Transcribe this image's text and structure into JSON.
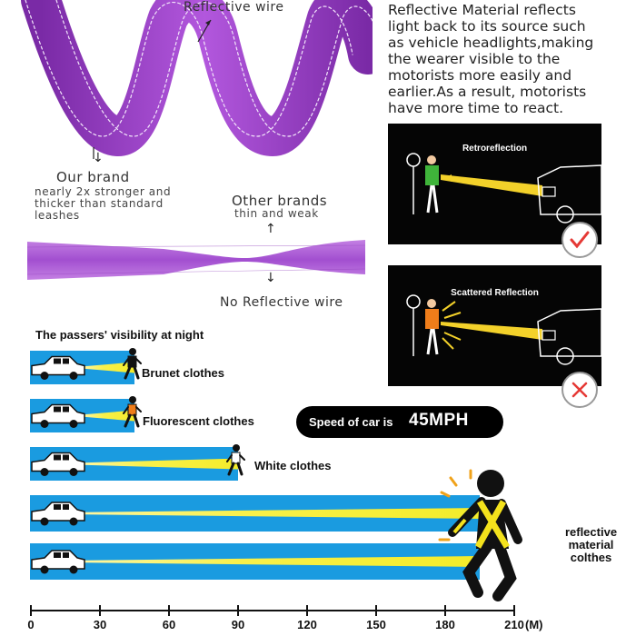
{
  "leash": {
    "reflective_wire_label": "Reflective wire",
    "our_brand_title": "Our brand",
    "our_brand_desc": [
      "nearly 2x stronger and",
      "thicker than standard",
      "leashes"
    ],
    "other_brands_title": "Other brands",
    "other_brands_desc": "thin and weak",
    "no_wire_label": "No Reflective wire",
    "color": "#9b3fc4"
  },
  "description": {
    "lines": [
      "Reflective Material reflects",
      "light back to its source such",
      "as vehicle headlights,making",
      "the wearer visible to the",
      "motorists more easily and",
      "earlier.As a result, motorists",
      "have more time to react."
    ]
  },
  "panels": [
    {
      "title": "Retroreflection",
      "mark": "check-icon",
      "mark_color": "#e53935"
    },
    {
      "title": "Scattered Reflection",
      "mark": "cross-icon",
      "mark_color": "#e53935"
    }
  ],
  "visibility": {
    "heading": "The passers' visibility at night",
    "rows": [
      {
        "label": "Brunet clothes",
        "distance_m": 45
      },
      {
        "label": "Fluorescent clothes",
        "distance_m": 45
      },
      {
        "label": "White clothes",
        "distance_m": 90
      },
      {
        "label": "",
        "distance_m": 195
      },
      {
        "label": "",
        "distance_m": 195
      }
    ],
    "reflective_label": [
      "reflective",
      "material",
      "colthes"
    ],
    "speed_label": "Speed of car is",
    "speed_value": "45MPH",
    "lane_color": "#1a9be0",
    "beam_color": "#f4ec2a"
  },
  "axis": {
    "ticks": [
      "0",
      "30",
      "60",
      "90",
      "120",
      "150",
      "180",
      "210"
    ],
    "unit": "(M)"
  }
}
